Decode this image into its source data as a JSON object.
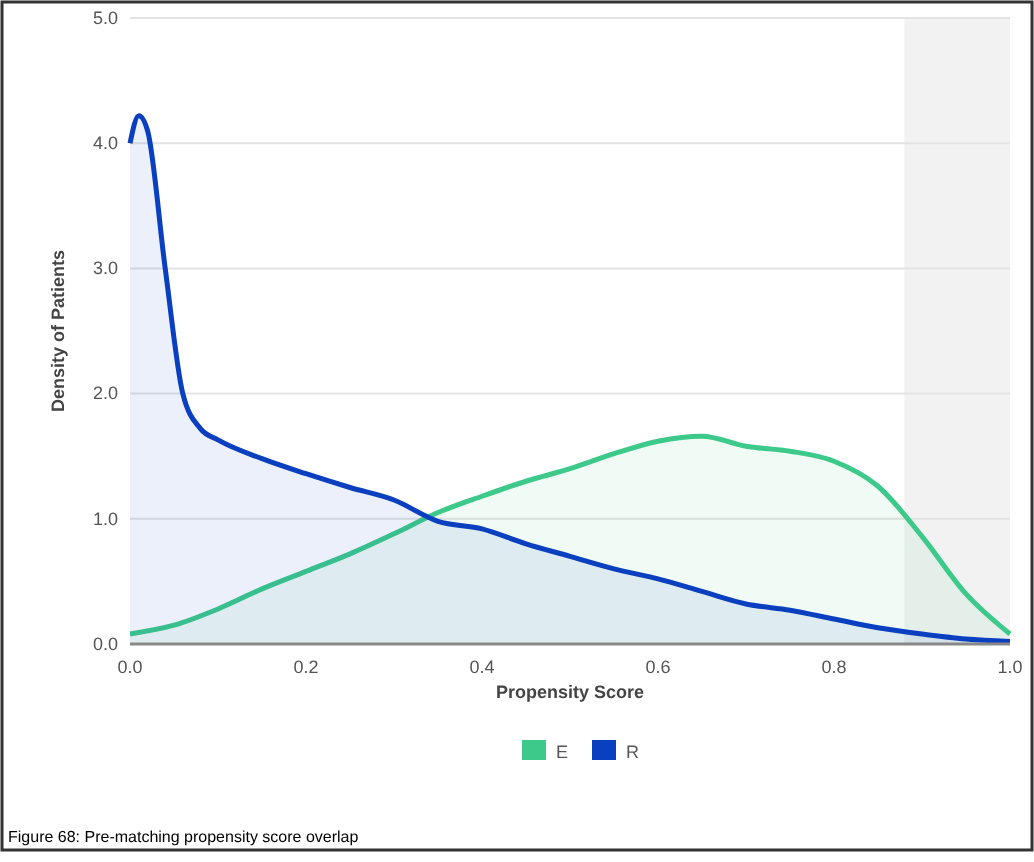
{
  "chart_data": {
    "type": "area",
    "xlabel": "Propensity Score",
    "ylabel": "Density of Patients",
    "xlim": [
      0,
      1
    ],
    "xticks": [
      {
        "value": 0,
        "label": "0.0"
      },
      {
        "value": 0.2,
        "label": "0.2"
      },
      {
        "value": 0.4,
        "label": "0.4"
      },
      {
        "value": 0.6,
        "label": "0.6"
      },
      {
        "value": 0.8,
        "label": "0.8"
      },
      {
        "value": 1,
        "label": "1.0"
      }
    ],
    "ylim": [
      0,
      5
    ],
    "yticks": [
      {
        "value": 0,
        "label": "0.0"
      },
      {
        "value": 1,
        "label": "1.0"
      },
      {
        "value": 2,
        "label": "2.0"
      },
      {
        "value": 3,
        "label": "3.0"
      },
      {
        "value": 4,
        "label": "4.0"
      },
      {
        "value": 5,
        "label": "5.0"
      }
    ],
    "grid": "y",
    "legend": "bottom",
    "bands": [
      {
        "axis": "x",
        "from": 0.88,
        "to": 1,
        "color": "#f2f2f2"
      }
    ],
    "series": [
      {
        "name": "E",
        "color": "#3dc98a",
        "x": [
          0,
          0.05,
          0.1,
          0.15,
          0.2,
          0.25,
          0.3,
          0.35,
          0.4,
          0.45,
          0.5,
          0.55,
          0.6,
          0.65,
          0.7,
          0.75,
          0.8,
          0.85,
          0.9,
          0.95,
          1
        ],
        "values": [
          0.08,
          0.15,
          0.28,
          0.44,
          0.58,
          0.72,
          0.88,
          1.05,
          1.18,
          1.3,
          1.4,
          1.52,
          1.62,
          1.66,
          1.58,
          1.54,
          1.46,
          1.26,
          0.86,
          0.4,
          0.08
        ]
      },
      {
        "name": "R",
        "color": "#0a3fbf",
        "x": [
          0,
          0.01,
          0.02,
          0.04,
          0.06,
          0.08,
          0.1,
          0.15,
          0.2,
          0.25,
          0.3,
          0.35,
          0.4,
          0.45,
          0.5,
          0.55,
          0.6,
          0.65,
          0.7,
          0.75,
          0.8,
          0.85,
          0.9,
          0.95,
          1
        ],
        "values": [
          4.0,
          4.22,
          4.1,
          3.0,
          2.0,
          1.72,
          1.63,
          1.48,
          1.36,
          1.25,
          1.15,
          0.98,
          0.92,
          0.8,
          0.7,
          0.6,
          0.52,
          0.42,
          0.32,
          0.27,
          0.2,
          0.13,
          0.08,
          0.04,
          0.02
        ]
      }
    ],
    "annotations": [
      "Figure 68: Pre-matching propensity score overlap"
    ]
  }
}
